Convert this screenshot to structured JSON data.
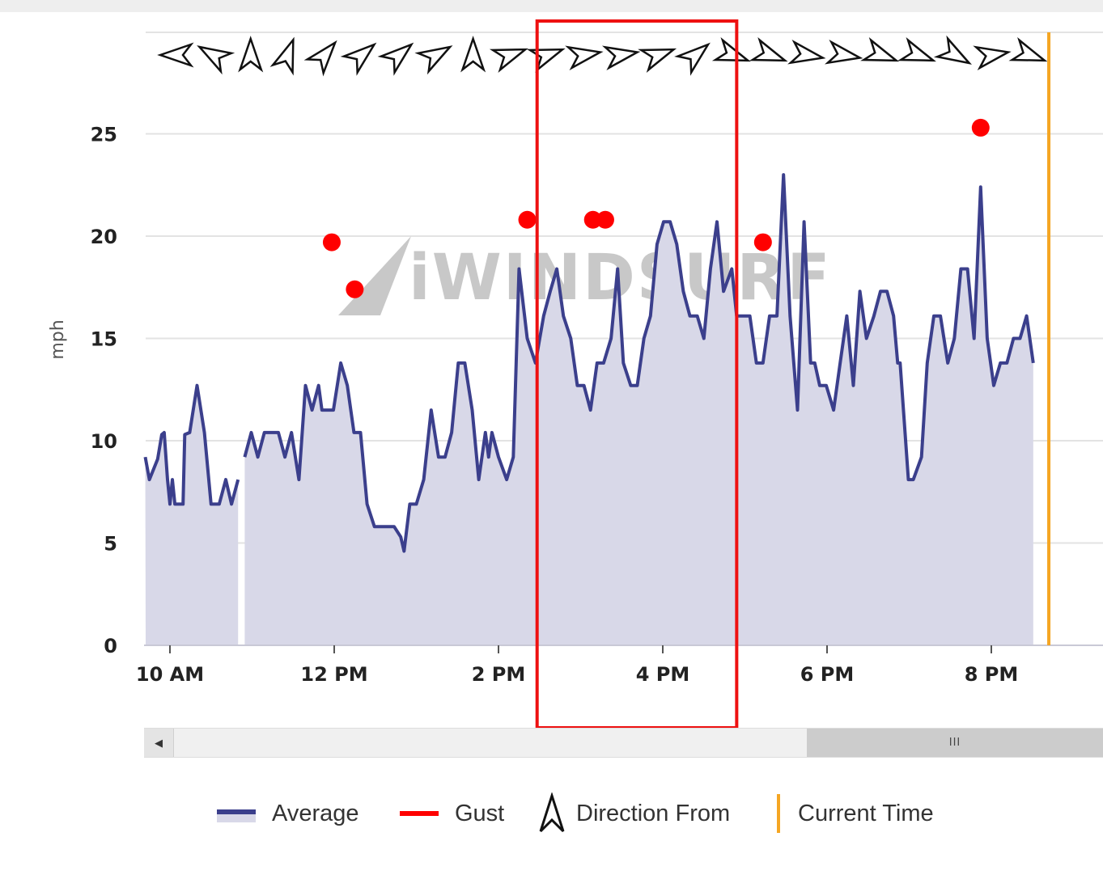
{
  "chart_data": {
    "type": "area",
    "ylabel": "mph",
    "ylim": [
      0,
      29
    ],
    "yticks": [
      0,
      5,
      10,
      15,
      20,
      25
    ],
    "x_tick_labels": [
      "10 AM",
      "12 PM",
      "2 PM",
      "4 PM",
      "6 PM",
      "8 PM"
    ],
    "x_ticks_hours": [
      10,
      12,
      14,
      16,
      18,
      20
    ],
    "xlim_hours": [
      9.7,
      21.4
    ],
    "watermark": "iWINDSURF",
    "current_time_hour": 20.7,
    "highlight_range_hours": [
      14.47,
      16.9
    ],
    "series": [
      {
        "name": "Average",
        "color": "#3b3f8c",
        "fill": "#d8d8e8",
        "segments": [
          [
            [
              9.7,
              9.2
            ],
            [
              9.75,
              8.1
            ],
            [
              9.85,
              9.1
            ],
            [
              9.9,
              10.3
            ],
            [
              9.93,
              10.4
            ],
            [
              9.97,
              8.1
            ],
            [
              10.0,
              6.9
            ],
            [
              10.03,
              8.1
            ],
            [
              10.06,
              6.9
            ],
            [
              10.16,
              6.9
            ],
            [
              10.18,
              10.3
            ],
            [
              10.24,
              10.4
            ],
            [
              10.33,
              12.7
            ],
            [
              10.42,
              10.4
            ],
            [
              10.5,
              6.9
            ],
            [
              10.6,
              6.9
            ],
            [
              10.68,
              8.1
            ],
            [
              10.75,
              6.9
            ],
            [
              10.83,
              8.1
            ]
          ],
          [
            [
              10.91,
              9.2
            ],
            [
              10.99,
              10.4
            ],
            [
              11.07,
              9.2
            ],
            [
              11.15,
              10.4
            ],
            [
              11.24,
              10.4
            ],
            [
              11.32,
              10.4
            ],
            [
              11.4,
              9.2
            ],
            [
              11.48,
              10.4
            ],
            [
              11.57,
              8.1
            ],
            [
              11.65,
              12.7
            ],
            [
              11.73,
              11.5
            ],
            [
              11.81,
              12.7
            ],
            [
              11.85,
              11.5
            ],
            [
              11.99,
              11.5
            ],
            [
              12.08,
              13.8
            ],
            [
              12.16,
              12.7
            ],
            [
              12.24,
              10.4
            ],
            [
              12.32,
              10.4
            ],
            [
              12.4,
              6.9
            ],
            [
              12.49,
              5.8
            ],
            [
              12.57,
              5.8
            ],
            [
              12.65,
              5.8
            ],
            [
              12.73,
              5.8
            ],
            [
              12.81,
              5.3
            ],
            [
              12.85,
              4.6
            ],
            [
              12.92,
              6.9
            ],
            [
              13.0,
              6.9
            ],
            [
              13.09,
              8.1
            ],
            [
              13.18,
              11.5
            ],
            [
              13.27,
              9.2
            ],
            [
              13.35,
              9.2
            ],
            [
              13.43,
              10.4
            ],
            [
              13.51,
              13.8
            ],
            [
              13.59,
              13.8
            ],
            [
              13.68,
              11.5
            ],
            [
              13.76,
              8.1
            ],
            [
              13.84,
              10.4
            ],
            [
              13.88,
              9.2
            ],
            [
              13.92,
              10.4
            ],
            [
              14.0,
              9.2
            ],
            [
              14.1,
              8.1
            ],
            [
              14.18,
              9.2
            ],
            [
              14.25,
              18.4
            ],
            [
              14.35,
              15.0
            ],
            [
              14.45,
              13.8
            ],
            [
              14.55,
              16.1
            ],
            [
              14.63,
              17.3
            ],
            [
              14.71,
              18.4
            ],
            [
              14.79,
              16.1
            ],
            [
              14.88,
              15.0
            ],
            [
              14.96,
              12.7
            ],
            [
              15.04,
              12.7
            ],
            [
              15.12,
              11.5
            ],
            [
              15.2,
              13.8
            ],
            [
              15.28,
              13.8
            ],
            [
              15.37,
              15.0
            ],
            [
              15.45,
              18.4
            ],
            [
              15.52,
              13.8
            ],
            [
              15.61,
              12.7
            ],
            [
              15.69,
              12.7
            ],
            [
              15.77,
              15.0
            ],
            [
              15.85,
              16.1
            ],
            [
              15.93,
              19.6
            ],
            [
              16.01,
              20.7
            ],
            [
              16.09,
              20.7
            ],
            [
              16.17,
              19.6
            ],
            [
              16.25,
              17.3
            ],
            [
              16.33,
              16.1
            ],
            [
              16.42,
              16.1
            ],
            [
              16.5,
              15.0
            ],
            [
              16.58,
              18.4
            ],
            [
              16.66,
              20.7
            ],
            [
              16.74,
              17.3
            ],
            [
              16.84,
              18.4
            ],
            [
              16.9,
              16.1
            ],
            [
              16.98,
              16.1
            ],
            [
              17.06,
              16.1
            ],
            [
              17.14,
              13.8
            ],
            [
              17.22,
              13.8
            ],
            [
              17.3,
              16.1
            ],
            [
              17.39,
              16.1
            ],
            [
              17.47,
              23.0
            ],
            [
              17.55,
              16.1
            ],
            [
              17.64,
              11.5
            ],
            [
              17.72,
              20.7
            ],
            [
              17.8,
              13.8
            ],
            [
              17.85,
              13.8
            ],
            [
              17.91,
              12.7
            ],
            [
              17.99,
              12.7
            ],
            [
              18.08,
              11.5
            ],
            [
              18.16,
              13.8
            ],
            [
              18.24,
              16.1
            ],
            [
              18.32,
              12.7
            ],
            [
              18.4,
              17.3
            ],
            [
              18.48,
              15.0
            ],
            [
              18.57,
              16.1
            ],
            [
              18.65,
              17.3
            ],
            [
              18.73,
              17.3
            ],
            [
              18.81,
              16.1
            ],
            [
              18.86,
              13.8
            ],
            [
              18.89,
              13.8
            ],
            [
              18.99,
              8.1
            ],
            [
              19.05,
              8.1
            ],
            [
              19.15,
              9.2
            ],
            [
              19.22,
              13.8
            ],
            [
              19.3,
              16.1
            ],
            [
              19.38,
              16.1
            ],
            [
              19.47,
              13.8
            ],
            [
              19.55,
              15.0
            ],
            [
              19.63,
              18.4
            ],
            [
              19.71,
              18.4
            ],
            [
              19.79,
              15.0
            ],
            [
              19.87,
              22.4
            ],
            [
              19.95,
              15.0
            ],
            [
              20.03,
              12.7
            ],
            [
              20.11,
              13.8
            ],
            [
              20.19,
              13.8
            ],
            [
              20.27,
              15.0
            ],
            [
              20.35,
              15.0
            ],
            [
              20.43,
              16.1
            ],
            [
              20.51,
              13.8
            ]
          ]
        ]
      },
      {
        "name": "Gust",
        "color": "#ff0000",
        "points": [
          [
            11.97,
            19.7
          ],
          [
            12.25,
            17.4
          ],
          [
            14.35,
            20.8
          ],
          [
            15.15,
            20.8
          ],
          [
            15.3,
            20.8
          ],
          [
            17.22,
            19.7
          ],
          [
            19.87,
            25.3
          ]
        ]
      }
    ],
    "direction_from_arrows_deg": [
      270,
      300,
      0,
      20,
      40,
      50,
      50,
      60,
      0,
      70,
      70,
      80,
      80,
      70,
      50,
      110,
      110,
      100,
      100,
      110,
      110,
      120,
      80,
      110
    ]
  },
  "legend": {
    "average": "Average",
    "gust": "Gust",
    "direction": "Direction From",
    "current": "Current Time"
  },
  "scrollbar": {
    "left_arrow": "◀",
    "thumb_grip": "III"
  },
  "colors": {
    "average_line": "#3b3f8c",
    "average_fill": "#d8d8e8",
    "gust": "#ff0000",
    "current_time": "#f5a623",
    "highlight_box": "#ee1111"
  }
}
